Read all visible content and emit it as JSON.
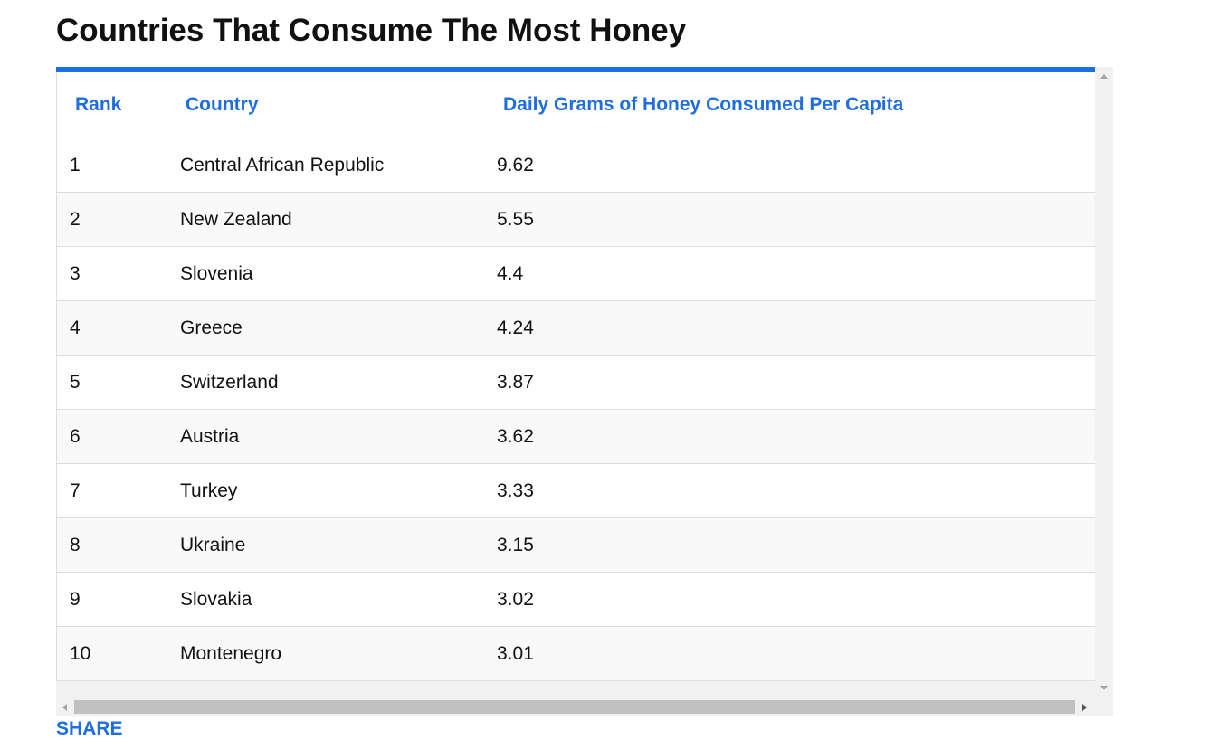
{
  "header": {
    "title": "Countries That Consume The Most Honey"
  },
  "table": {
    "columns": [
      "Rank",
      "Country",
      "Daily Grams of Honey Consumed Per Capita"
    ],
    "rows": [
      [
        1,
        "Central African Republic",
        9.62
      ],
      [
        2,
        "New Zealand",
        5.55
      ],
      [
        3,
        "Slovenia",
        4.4
      ],
      [
        4,
        "Greece",
        4.24
      ],
      [
        5,
        "Switzerland",
        3.87
      ],
      [
        6,
        "Austria",
        3.62
      ],
      [
        7,
        "Turkey",
        3.33
      ],
      [
        8,
        "Ukraine",
        3.15
      ],
      [
        9,
        "Slovakia",
        3.02
      ],
      [
        10,
        "Montenegro",
        3.01
      ]
    ]
  },
  "footer": {
    "share": "SHARE"
  }
}
